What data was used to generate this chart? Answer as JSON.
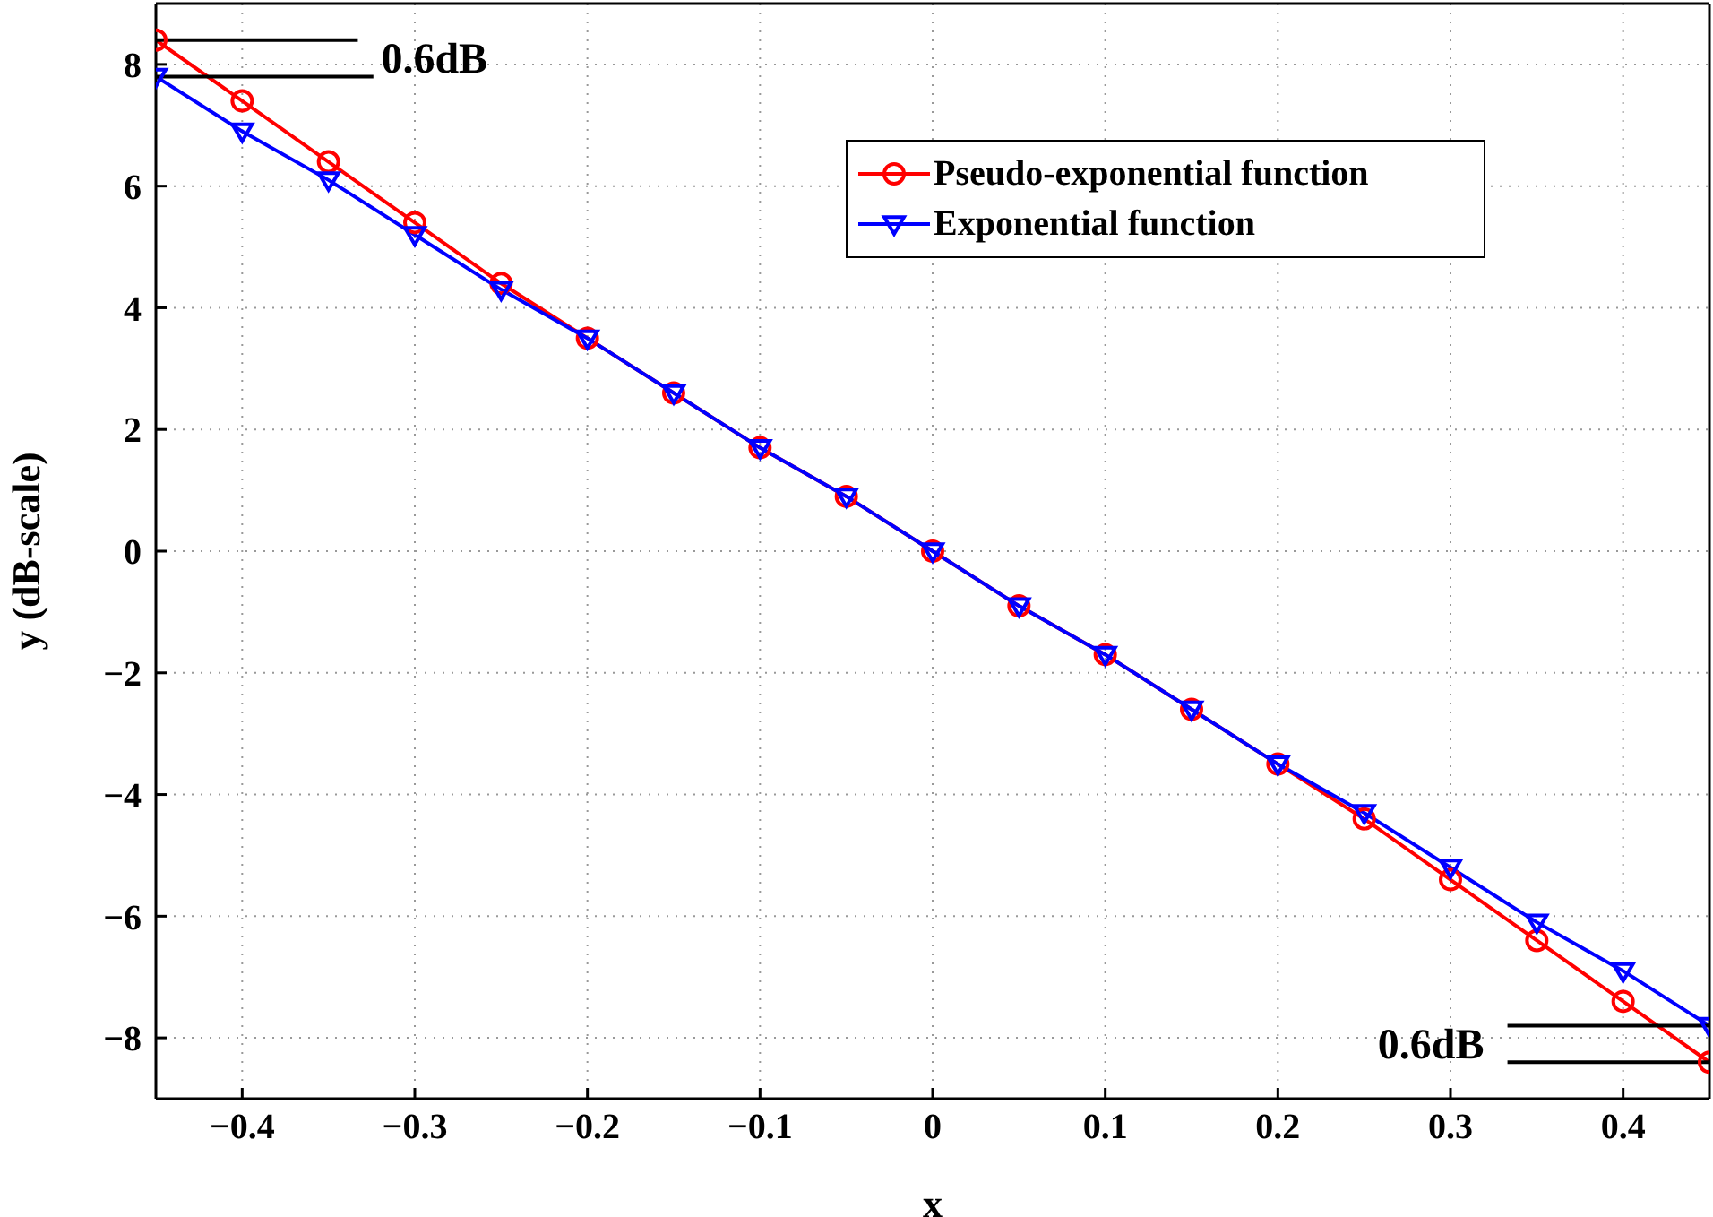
{
  "chart_data": {
    "type": "line",
    "xlabel": "x",
    "ylabel": "y (dB-scale)",
    "x": [
      -0.45,
      -0.4,
      -0.35,
      -0.3,
      -0.25,
      -0.2,
      -0.15,
      -0.1,
      -0.05,
      0,
      0.05,
      0.1,
      0.15,
      0.2,
      0.25,
      0.3,
      0.35,
      0.4,
      0.45
    ],
    "series": [
      {
        "name": "Pseudo-exponential function",
        "color": "#ff0000",
        "marker": "circle",
        "values": [
          8.4,
          7.4,
          6.4,
          5.4,
          4.4,
          3.5,
          2.6,
          1.7,
          0.9,
          0,
          -0.9,
          -1.7,
          -2.6,
          -3.5,
          -4.4,
          -5.4,
          -6.4,
          -7.4,
          -8.4
        ]
      },
      {
        "name": "Exponential function",
        "color": "#0000ff",
        "marker": "triangle",
        "values": [
          7.8,
          6.9,
          6.1,
          5.2,
          4.3,
          3.5,
          2.6,
          1.7,
          0.9,
          0,
          -0.9,
          -1.7,
          -2.6,
          -3.5,
          -4.3,
          -5.2,
          -6.1,
          -6.9,
          -7.8
        ]
      }
    ],
    "xlim": [
      -0.45,
      0.45
    ],
    "xticks": [
      -0.4,
      -0.3,
      -0.2,
      -0.1,
      0,
      0.1,
      0.2,
      0.3,
      0.4
    ],
    "ylim": [
      -9,
      9
    ],
    "yticks": [
      -8,
      -6,
      -4,
      -2,
      0,
      2,
      4,
      6,
      8
    ],
    "grid": true,
    "legend": "top right",
    "line_style": "solid",
    "annotations": [
      {
        "text": "0.6dB",
        "x": -0.45,
        "y": 8.4
      },
      {
        "text": "0.6dB",
        "x": 0.45,
        "y": -8.4
      }
    ]
  }
}
